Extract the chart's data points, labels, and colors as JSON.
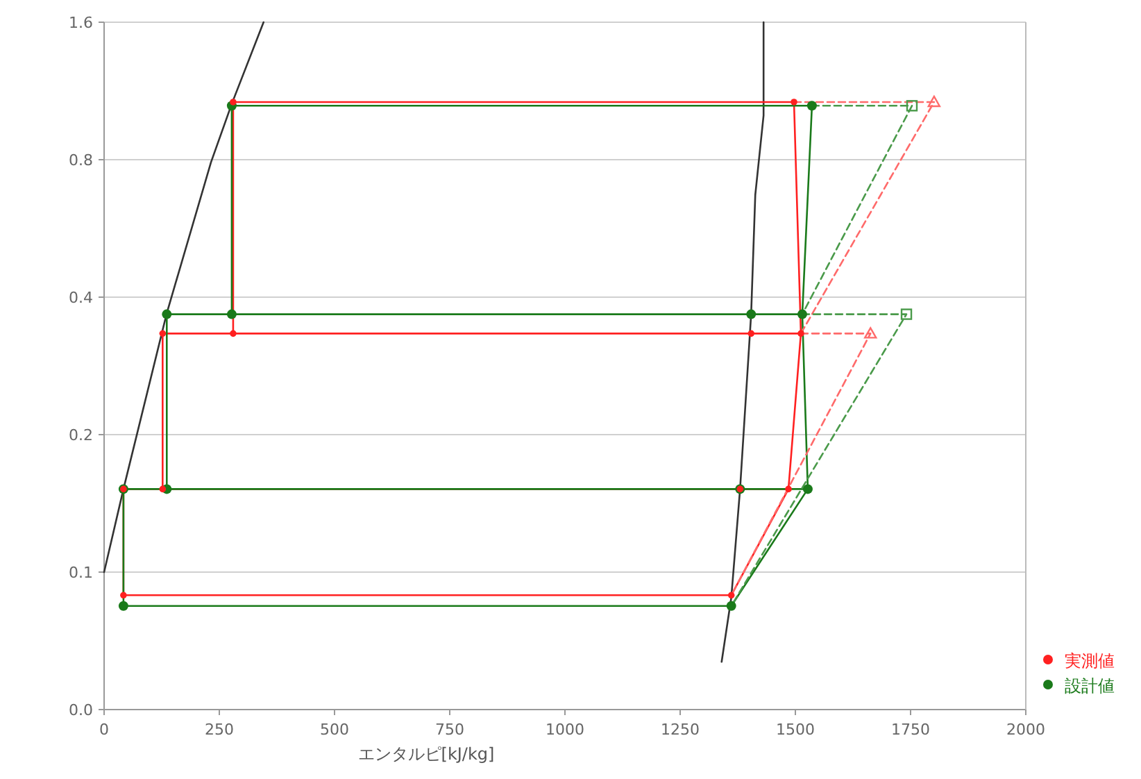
{
  "chart_data": {
    "type": "line",
    "xlabel": "エンタルピ[kJ/kg]",
    "log": "y",
    "grid": "y",
    "legend": "bottom right",
    "xlim": [
      0,
      2000
    ],
    "xticks": [
      0,
      250,
      500,
      750,
      1000,
      1250,
      1500,
      1750,
      2000
    ],
    "ylim": [
      0.05,
      1.6
    ],
    "yticks": [
      {
        "value": 0.05,
        "label": "0.0"
      },
      0.1,
      0.2,
      0.4,
      0.8,
      1.6
    ],
    "series": [
      {
        "color": "#333333",
        "line_style": "solid",
        "marker": "none",
        "x": [
          0,
          42,
          136,
          232,
          277,
          346,
          null,
          1340,
          1361,
          1380,
          1404,
          1413,
          1431,
          1431
        ],
        "values": [
          0.1,
          0.152,
          0.369,
          0.79,
          1.06,
          1.6,
          null,
          0.0636,
          0.088,
          0.152,
          0.367,
          0.67,
          1.0,
          1.6
        ]
      },
      {
        "color": "#ff2020",
        "line_style": "solid",
        "marker": "none",
        "x": [
          1485,
          1361,
          42,
          42,
          1485,
          1512,
          127,
          127,
          null,
          280,
          280,
          1497,
          1512
        ],
        "values": [
          0.152,
          0.089,
          0.089,
          0.152,
          0.152,
          0.333,
          0.333,
          0.152,
          null,
          0.333,
          1.07,
          1.07,
          0.333
        ]
      },
      {
        "color": "#1a7a1a",
        "line_style": "solid",
        "marker": "none",
        "x": [
          1527,
          1361,
          42,
          42,
          1527,
          1515,
          136,
          136,
          null,
          277,
          277,
          1536,
          1515
        ],
        "values": [
          0.152,
          0.0843,
          0.0843,
          0.152,
          0.152,
          0.367,
          0.367,
          0.152,
          null,
          0.367,
          1.05,
          1.05,
          0.367
        ]
      },
      {
        "color": "#ff6a6a",
        "line_style": "dashed",
        "marker": "none",
        "x": [
          1497,
          1801,
          1512
        ],
        "values": [
          1.07,
          1.07,
          0.333
        ]
      },
      {
        "color": "#ff6a6a",
        "line_style": "dashed",
        "marker": "none",
        "x": [
          1512,
          1663,
          1361
        ],
        "values": [
          0.333,
          0.333,
          0.089
        ]
      },
      {
        "color": "#4a9a4a",
        "line_style": "dashed",
        "marker": "none",
        "x": [
          1536,
          1753,
          1515
        ],
        "values": [
          1.05,
          1.05,
          0.367
        ]
      },
      {
        "color": "#4a9a4a",
        "line_style": "dashed",
        "marker": "none",
        "x": [
          1515,
          1741,
          1361
        ],
        "values": [
          0.367,
          0.367,
          0.0843
        ]
      },
      {
        "type": "scatter",
        "color": "#ff6a6a",
        "marker": "triangle",
        "x": [
          1801,
          1663
        ],
        "values": [
          1.07,
          0.333
        ]
      },
      {
        "type": "scatter",
        "color": "#4a9a4a",
        "marker": "square",
        "x": [
          1753,
          1741
        ],
        "values": [
          1.05,
          0.367
        ]
      },
      {
        "type": "scatter",
        "name": "実測値",
        "color": "#ff2020",
        "marker": "circle",
        "x": [
          280,
          1497,
          127,
          280,
          1404,
          1512,
          42,
          127,
          1380,
          1485,
          42,
          1361
        ],
        "values": [
          1.07,
          1.07,
          0.333,
          0.333,
          0.333,
          0.333,
          0.152,
          0.152,
          0.152,
          0.152,
          0.089,
          0.089
        ]
      },
      {
        "type": "scatter",
        "name": "設計値",
        "color": "#1a7a1a",
        "marker": "circle",
        "x": [
          277,
          1536,
          136,
          277,
          1404,
          1515,
          42,
          136,
          1380,
          1527,
          42,
          1361
        ],
        "values": [
          1.05,
          1.05,
          0.367,
          0.367,
          0.367,
          0.367,
          0.152,
          0.152,
          0.152,
          0.152,
          0.0843,
          0.0843
        ]
      }
    ]
  }
}
